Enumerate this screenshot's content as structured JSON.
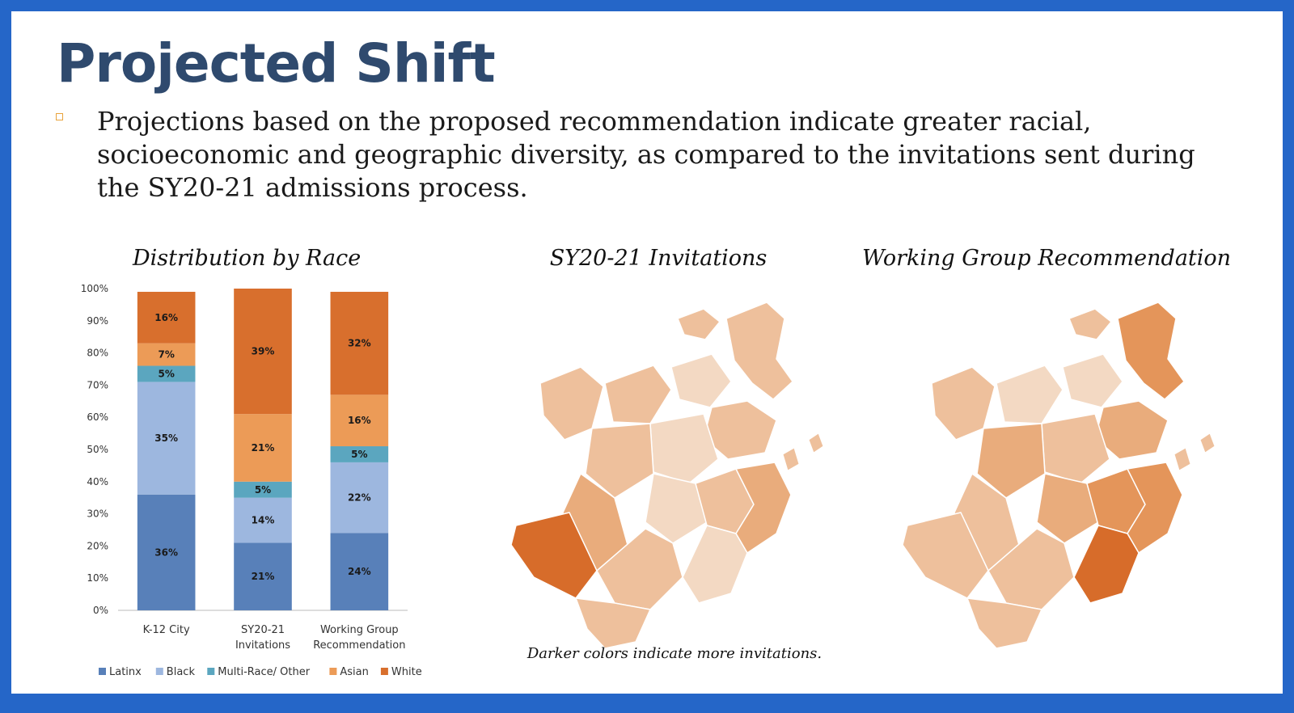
{
  "slide": {
    "title": "Projected Shift",
    "bullet": "Projections based on the proposed recommendation indicate greater racial, socioeconomic and geographic diversity, as compared to the invitations sent during the SY20-21 admissions process.",
    "chart_title": "Distribution by Race",
    "map1_title": "SY20-21 Invitations",
    "map2_title": "Working Group Recommendation",
    "footnote": "Darker colors indicate more invitations."
  },
  "colors": {
    "background_frame": "#2566c8",
    "title": "#2f4a6e",
    "bullet_marker": "#e9a33c",
    "map_shades": [
      "#f3d9c3",
      "#eec09c",
      "#e9ac7c",
      "#e4955a",
      "#d76c2a"
    ]
  },
  "chart_data": {
    "type": "bar",
    "stacked": true,
    "title": "Distribution by Race",
    "categories": [
      "K-12 City",
      "SY20-21 Invitations",
      "Working Group Recommendation"
    ],
    "category_lines": [
      [
        "K-12 City"
      ],
      [
        "SY20-21",
        "Invitations"
      ],
      [
        "Working Group",
        "Recommendation"
      ]
    ],
    "ylim": [
      0,
      100
    ],
    "yticks": [
      0,
      10,
      20,
      30,
      40,
      50,
      60,
      70,
      80,
      90,
      100
    ],
    "ytick_suffix": "%",
    "legend_position": "bottom",
    "series": [
      {
        "name": "Latinx",
        "color": "#5880b9",
        "values": [
          36,
          21,
          24
        ],
        "labels": [
          "36%",
          "21%",
          "24%"
        ]
      },
      {
        "name": "Black",
        "color": "#9db7df",
        "values": [
          35,
          14,
          22
        ],
        "labels": [
          "35%",
          "14%",
          "22%"
        ]
      },
      {
        "name": "Multi-Race/ Other",
        "color": "#5ba6bf",
        "values": [
          5,
          5,
          5
        ],
        "labels": [
          "5%",
          "5%",
          "5%"
        ]
      },
      {
        "name": "Asian",
        "color": "#ec9b57",
        "values": [
          7,
          21,
          16
        ],
        "labels": [
          "7%",
          "21%",
          "16%"
        ]
      },
      {
        "name": "White",
        "color": "#d86f2d",
        "values": [
          16,
          39,
          32
        ],
        "labels": [
          "16%",
          "39%",
          "32%"
        ]
      }
    ]
  }
}
